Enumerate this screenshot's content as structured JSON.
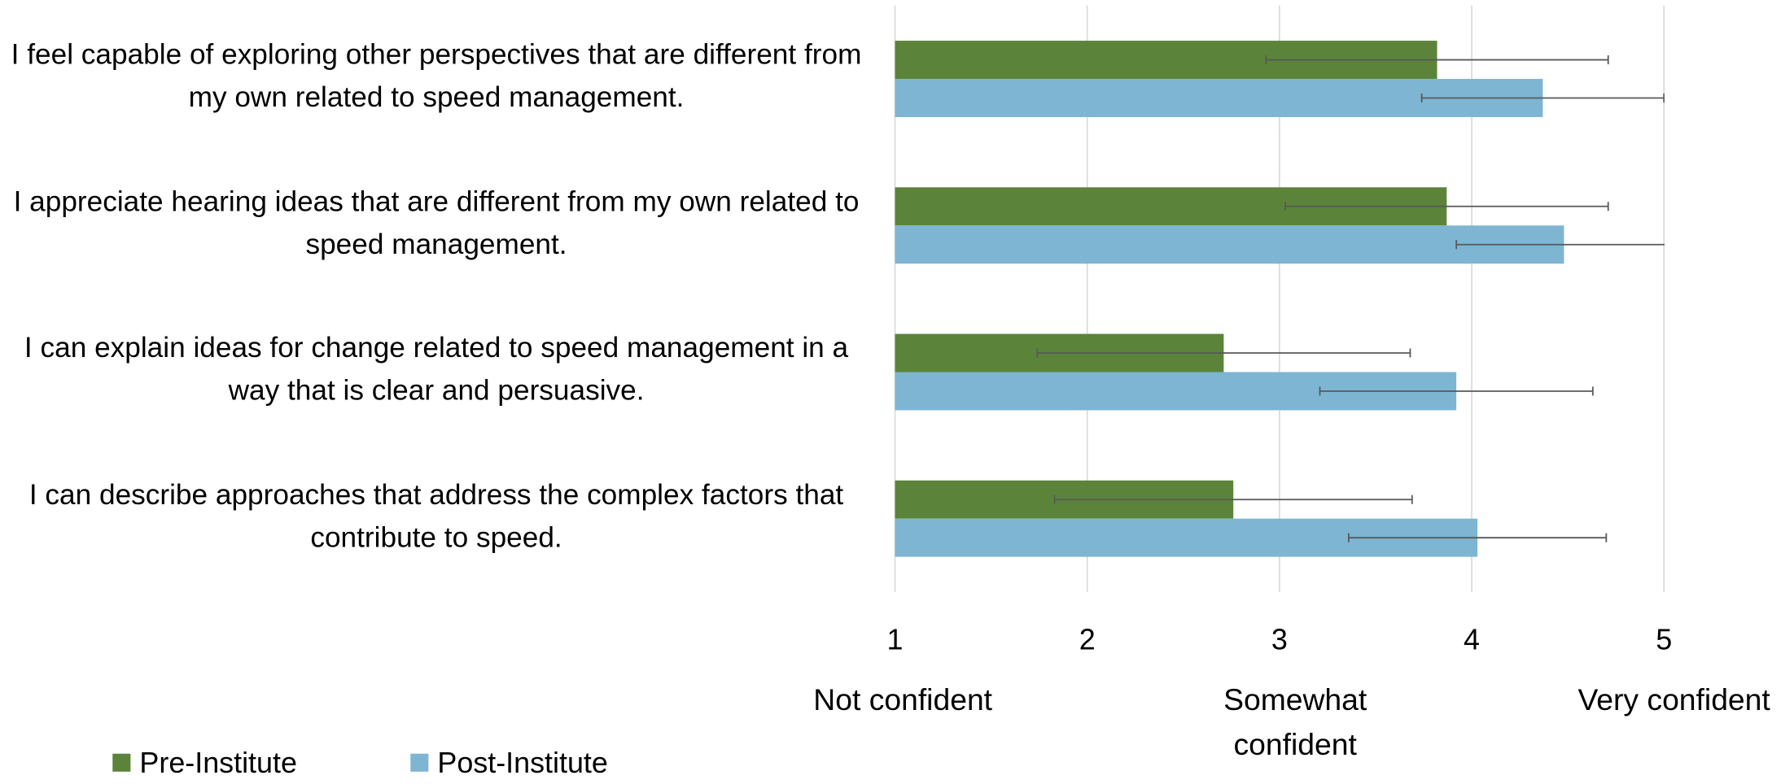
{
  "chart_data": {
    "type": "barh",
    "categories": [
      "I feel capable of exploring other perspectives that are different from my own related to speed management.",
      "I appreciate hearing ideas that are different from my own related to speed management.",
      "I can explain ideas for change related to speed management in a way that is clear and persuasive.",
      "I can describe approaches that address the complex factors that contribute to speed."
    ],
    "series": [
      {
        "name": "Pre-Institute",
        "color": "#5b843a",
        "values": [
          3.82,
          3.87,
          2.71,
          2.76
        ],
        "errors": [
          0.89,
          0.84,
          0.97,
          0.93
        ]
      },
      {
        "name": "Post-Institute",
        "color": "#7eb5d2",
        "values": [
          4.37,
          4.48,
          3.92,
          4.03
        ],
        "errors": [
          0.63,
          0.56,
          0.71,
          0.67
        ]
      }
    ],
    "xlim": [
      1,
      5
    ],
    "xticks": [
      1,
      2,
      3,
      4,
      5
    ],
    "scale_labels": [
      "Not confident",
      "Somewhat confident",
      "Very confident"
    ],
    "grid": true,
    "legend": "bottom-left"
  }
}
